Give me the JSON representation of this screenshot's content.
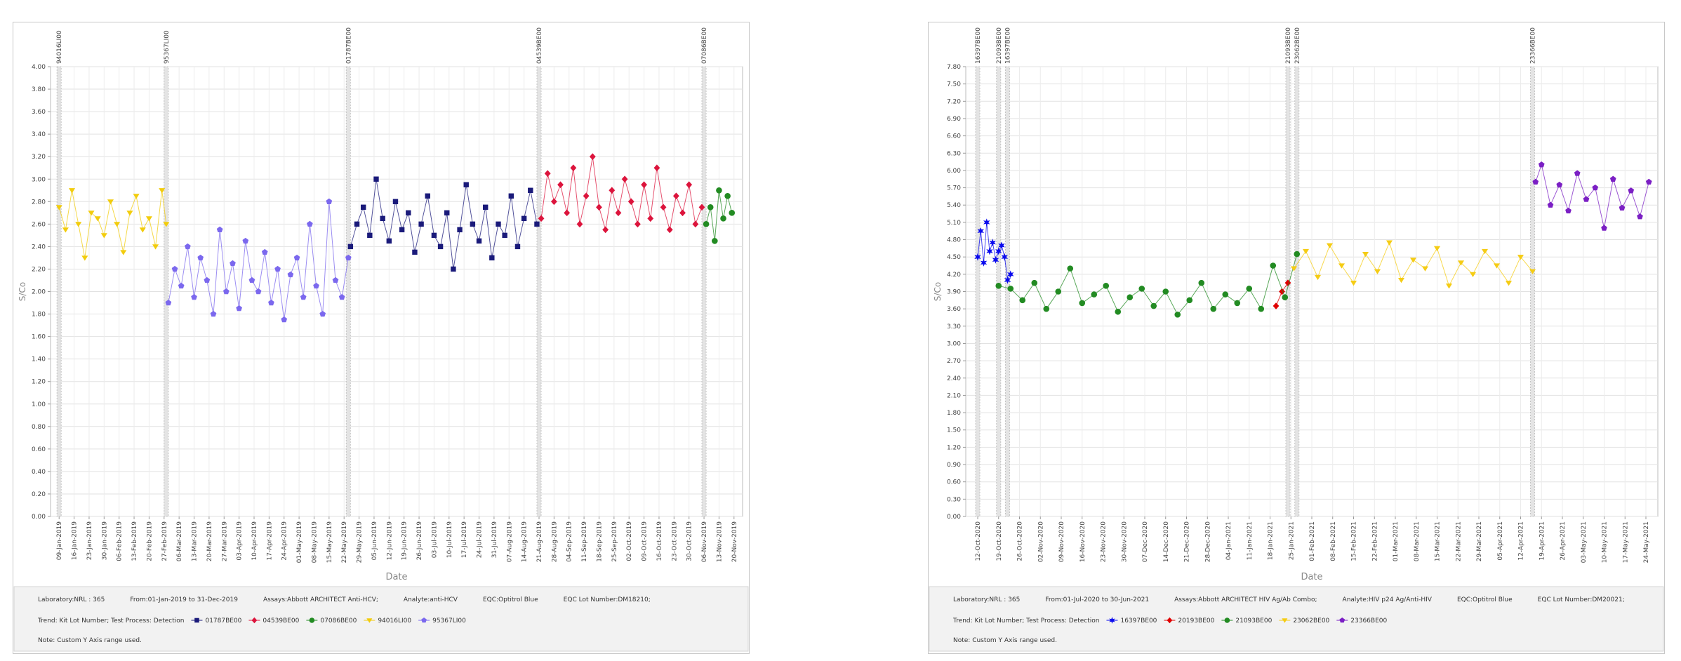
{
  "chart_data": [
    {
      "type": "line",
      "x_label": "Date",
      "y_label": "S/Co",
      "xlim": [
        "05-Jan-2019",
        "24-Nov-2019"
      ],
      "xticks": [
        "09-Jan-2019",
        "16-Jan-2019",
        "23-Jan-2019",
        "30-Jan-2019",
        "06-Feb-2019",
        "13-Feb-2019",
        "20-Feb-2019",
        "27-Feb-2019",
        "06-Mar-2019",
        "13-Mar-2019",
        "20-Mar-2019",
        "27-Mar-2019",
        "03-Apr-2019",
        "10-Apr-2019",
        "17-Apr-2019",
        "24-Apr-2019",
        "01-May-2019",
        "08-May-2019",
        "15-May-2019",
        "22-May-2019",
        "29-May-2019",
        "05-Jun-2019",
        "12-Jun-2019",
        "19-Jun-2019",
        "26-Jun-2019",
        "03-Jul-2019",
        "10-Jul-2019",
        "17-Jul-2019",
        "24-Jul-2019",
        "31-Jul-2019",
        "07-Aug-2019",
        "14-Aug-2019",
        "21-Aug-2019",
        "28-Aug-2019",
        "04-Sep-2019",
        "11-Sep-2019",
        "18-Sep-2019",
        "25-Sep-2019",
        "02-Oct-2019",
        "09-Oct-2019",
        "16-Oct-2019",
        "23-Oct-2019",
        "30-Oct-2019",
        "06-Nov-2019",
        "13-Nov-2019",
        "20-Nov-2019"
      ],
      "ylim": [
        0,
        4
      ],
      "yticks": [
        {
          "value": 0,
          "label": "0.00"
        },
        {
          "value": 0.2,
          "label": "0.20"
        },
        {
          "value": 0.4,
          "label": "0.40"
        },
        {
          "value": 0.6,
          "label": "0.60"
        },
        {
          "value": 0.8,
          "label": "0.80"
        },
        {
          "value": 1,
          "label": "1.00"
        },
        {
          "value": 1.2,
          "label": "1.20"
        },
        {
          "value": 1.4,
          "label": "1.40"
        },
        {
          "value": 1.6,
          "label": "1.60"
        },
        {
          "value": 1.8,
          "label": "1.80"
        },
        {
          "value": 2,
          "label": "2.00"
        },
        {
          "value": 2.2,
          "label": "2.20"
        },
        {
          "value": 2.4,
          "label": "2.40"
        },
        {
          "value": 2.6,
          "label": "2.60"
        },
        {
          "value": 2.8,
          "label": "2.80"
        },
        {
          "value": 3,
          "label": "3.00"
        },
        {
          "value": 3.2,
          "label": "3.20"
        },
        {
          "value": 3.4,
          "label": "3.40"
        },
        {
          "value": 3.6,
          "label": "3.60"
        },
        {
          "value": 3.8,
          "label": "3.80"
        },
        {
          "value": 4,
          "label": "4.00"
        }
      ],
      "grid": true,
      "annotations": [
        {
          "x": "09-Jan-2019",
          "label": "94016LI00"
        },
        {
          "x": "28-Feb-2019",
          "label": "95367LI00"
        },
        {
          "x": "24-May-2019",
          "label": "01787BE00"
        },
        {
          "x": "21-Aug-2019",
          "label": "04539BE00"
        },
        {
          "x": "06-Nov-2019",
          "label": "07086BE00"
        }
      ],
      "info": [
        "Laboratory:NRL : 365",
        "From:01-Jan-2019 to 31-Dec-2019",
        "Assays:Abbott ARCHITECT Anti-HCV;",
        "Analyte:anti-HCV",
        "EQC:Optitrol Blue",
        "EQC Lot Number:DM18210;"
      ],
      "legend_title": "Trend: Kit Lot Number; Test Process: Detection",
      "note": "Note: Custom Y Axis range used.",
      "series": [
        {
          "name": "01787BE00",
          "color": "#1a1a7a",
          "marker": "square",
          "x": [
            "25-May-2019",
            "28-May-2019",
            "31-May-2019",
            "03-Jun-2019",
            "06-Jun-2019",
            "09-Jun-2019",
            "12-Jun-2019",
            "15-Jun-2019",
            "18-Jun-2019",
            "21-Jun-2019",
            "24-Jun-2019",
            "27-Jun-2019",
            "30-Jun-2019",
            "03-Jul-2019",
            "06-Jul-2019",
            "09-Jul-2019",
            "12-Jul-2019",
            "15-Jul-2019",
            "18-Jul-2019",
            "21-Jul-2019",
            "24-Jul-2019",
            "27-Jul-2019",
            "30-Jul-2019",
            "02-Aug-2019",
            "05-Aug-2019",
            "08-Aug-2019",
            "11-Aug-2019",
            "14-Aug-2019",
            "17-Aug-2019",
            "20-Aug-2019"
          ],
          "values": [
            2.4,
            2.6,
            2.75,
            2.5,
            3.0,
            2.65,
            2.45,
            2.8,
            2.55,
            2.7,
            2.35,
            2.6,
            2.85,
            2.5,
            2.4,
            2.7,
            2.2,
            2.55,
            2.95,
            2.6,
            2.45,
            2.75,
            2.3,
            2.6,
            2.5,
            2.85,
            2.4,
            2.65,
            2.9,
            2.6
          ]
        },
        {
          "name": "04539BE00",
          "color": "#dc143c",
          "marker": "diamond",
          "x": [
            "22-Aug-2019",
            "25-Aug-2019",
            "28-Aug-2019",
            "31-Aug-2019",
            "03-Sep-2019",
            "06-Sep-2019",
            "09-Sep-2019",
            "12-Sep-2019",
            "15-Sep-2019",
            "18-Sep-2019",
            "21-Sep-2019",
            "24-Sep-2019",
            "27-Sep-2019",
            "30-Sep-2019",
            "03-Oct-2019",
            "06-Oct-2019",
            "09-Oct-2019",
            "12-Oct-2019",
            "15-Oct-2019",
            "18-Oct-2019",
            "21-Oct-2019",
            "24-Oct-2019",
            "27-Oct-2019",
            "30-Oct-2019",
            "02-Nov-2019",
            "05-Nov-2019"
          ],
          "values": [
            2.65,
            3.05,
            2.8,
            2.95,
            2.7,
            3.1,
            2.6,
            2.85,
            3.2,
            2.75,
            2.55,
            2.9,
            2.7,
            3.0,
            2.8,
            2.6,
            2.95,
            2.65,
            3.1,
            2.75,
            2.55,
            2.85,
            2.7,
            2.95,
            2.6,
            2.75
          ]
        },
        {
          "name": "07086BE00",
          "color": "#228b22",
          "marker": "circle",
          "x": [
            "07-Nov-2019",
            "09-Nov-2019",
            "11-Nov-2019",
            "13-Nov-2019",
            "15-Nov-2019",
            "17-Nov-2019",
            "19-Nov-2019"
          ],
          "values": [
            2.6,
            2.75,
            2.45,
            2.9,
            2.65,
            2.85,
            2.7
          ]
        },
        {
          "name": "94016LI00",
          "color": "#f2cc0c",
          "marker": "triangle-down",
          "x": [
            "09-Jan-2019",
            "12-Jan-2019",
            "15-Jan-2019",
            "18-Jan-2019",
            "21-Jan-2019",
            "24-Jan-2019",
            "27-Jan-2019",
            "30-Jan-2019",
            "02-Feb-2019",
            "05-Feb-2019",
            "08-Feb-2019",
            "11-Feb-2019",
            "14-Feb-2019",
            "17-Feb-2019",
            "20-Feb-2019",
            "23-Feb-2019",
            "26-Feb-2019",
            "28-Feb-2019"
          ],
          "values": [
            2.75,
            2.55,
            2.9,
            2.6,
            2.3,
            2.7,
            2.65,
            2.5,
            2.8,
            2.6,
            2.35,
            2.7,
            2.85,
            2.55,
            2.65,
            2.4,
            2.9,
            2.6
          ]
        },
        {
          "name": "95367LI00",
          "color": "#7b68ee",
          "marker": "pentagon",
          "x": [
            "01-Mar-2019",
            "04-Mar-2019",
            "07-Mar-2019",
            "10-Mar-2019",
            "13-Mar-2019",
            "16-Mar-2019",
            "19-Mar-2019",
            "22-Mar-2019",
            "25-Mar-2019",
            "28-Mar-2019",
            "31-Mar-2019",
            "03-Apr-2019",
            "06-Apr-2019",
            "09-Apr-2019",
            "12-Apr-2019",
            "15-Apr-2019",
            "18-Apr-2019",
            "21-Apr-2019",
            "24-Apr-2019",
            "27-Apr-2019",
            "30-Apr-2019",
            "03-May-2019",
            "06-May-2019",
            "09-May-2019",
            "12-May-2019",
            "15-May-2019",
            "18-May-2019",
            "21-May-2019",
            "24-May-2019"
          ],
          "values": [
            1.9,
            2.2,
            2.05,
            2.4,
            1.95,
            2.3,
            2.1,
            1.8,
            2.55,
            2.0,
            2.25,
            1.85,
            2.45,
            2.1,
            2.0,
            2.35,
            1.9,
            2.2,
            1.75,
            2.15,
            2.3,
            1.95,
            2.6,
            2.05,
            1.8,
            2.8,
            2.1,
            1.95,
            2.3
          ]
        }
      ]
    },
    {
      "type": "line",
      "x_label": "Date",
      "y_label": "S/Co",
      "xlim": [
        "08-Oct-2020",
        "28-May-2021"
      ],
      "xticks": [
        "12-Oct-2020",
        "19-Oct-2020",
        "26-Oct-2020",
        "02-Nov-2020",
        "09-Nov-2020",
        "16-Nov-2020",
        "23-Nov-2020",
        "30-Nov-2020",
        "07-Dec-2020",
        "14-Dec-2020",
        "21-Dec-2020",
        "28-Dec-2020",
        "04-Jan-2021",
        "11-Jan-2021",
        "18-Jan-2021",
        "25-Jan-2021",
        "01-Feb-2021",
        "08-Feb-2021",
        "15-Feb-2021",
        "22-Feb-2021",
        "01-Mar-2021",
        "08-Mar-2021",
        "15-Mar-2021",
        "22-Mar-2021",
        "29-Mar-2021",
        "05-Apr-2021",
        "12-Apr-2021",
        "19-Apr-2021",
        "26-Apr-2021",
        "03-May-2021",
        "10-May-2021",
        "17-May-2021",
        "24-May-2021"
      ],
      "ylim": [
        0,
        7.8
      ],
      "yticks": [
        {
          "value": 0,
          "label": "0.00"
        },
        {
          "value": 0.3,
          "label": "0.30"
        },
        {
          "value": 0.6,
          "label": "0.60"
        },
        {
          "value": 0.9,
          "label": "0.90"
        },
        {
          "value": 1.2,
          "label": "1.20"
        },
        {
          "value": 1.5,
          "label": "1.50"
        },
        {
          "value": 1.8,
          "label": "1.80"
        },
        {
          "value": 2.1,
          "label": "2.10"
        },
        {
          "value": 2.4,
          "label": "2.40"
        },
        {
          "value": 2.7,
          "label": "2.70"
        },
        {
          "value": 3,
          "label": "3.00"
        },
        {
          "value": 3.3,
          "label": "3.30"
        },
        {
          "value": 3.6,
          "label": "3.60"
        },
        {
          "value": 3.9,
          "label": "3.90"
        },
        {
          "value": 4.2,
          "label": "4.20"
        },
        {
          "value": 4.5,
          "label": "4.50"
        },
        {
          "value": 4.8,
          "label": "4.80"
        },
        {
          "value": 5.1,
          "label": "5.10"
        },
        {
          "value": 5.4,
          "label": "5.40"
        },
        {
          "value": 5.7,
          "label": "5.70"
        },
        {
          "value": 6,
          "label": "6.00"
        },
        {
          "value": 6.3,
          "label": "6.30"
        },
        {
          "value": 6.6,
          "label": "6.60"
        },
        {
          "value": 6.9,
          "label": "6.90"
        },
        {
          "value": 7.2,
          "label": "7.20"
        },
        {
          "value": 7.5,
          "label": "7.50"
        },
        {
          "value": 7.8,
          "label": "7.80"
        }
      ],
      "grid": true,
      "annotations": [
        {
          "x": "12-Oct-2020",
          "label": "16397BE00"
        },
        {
          "x": "19-Oct-2020",
          "label": "21093BE00"
        },
        {
          "x": "22-Oct-2020",
          "label": "16397BE00"
        },
        {
          "x": "24-Jan-2021",
          "label": "21093BE00"
        },
        {
          "x": "27-Jan-2021",
          "label": "23062BE00"
        },
        {
          "x": "16-Apr-2021",
          "label": "23366BE00"
        }
      ],
      "info": [
        "Laboratory:NRL : 365",
        "From:01-Jul-2020 to 30-Jun-2021",
        "Assays:Abbott ARCHITECT HIV Ag/Ab Combo;",
        "Analyte:HIV p24 Ag/Anti-HIV",
        "EQC:Optitrol Blue",
        "EQC Lot Number:DM20021;"
      ],
      "legend_title": "Trend: Kit Lot Number; Test Process: Detection",
      "note": "Note: Custom Y Axis range used.",
      "series": [
        {
          "name": "16397BE00",
          "color": "#0a0aee",
          "marker": "star",
          "x": [
            "12-Oct-2020",
            "13-Oct-2020",
            "14-Oct-2020",
            "15-Oct-2020",
            "16-Oct-2020",
            "17-Oct-2020",
            "18-Oct-2020",
            "19-Oct-2020",
            "20-Oct-2020",
            "21-Oct-2020",
            "22-Oct-2020",
            "23-Oct-2020"
          ],
          "values": [
            4.5,
            4.95,
            4.4,
            5.1,
            4.6,
            4.75,
            4.45,
            4.6,
            4.7,
            4.5,
            4.1,
            4.2
          ]
        },
        {
          "name": "20193BE00",
          "color": "#e00000",
          "marker": "diamond",
          "x": [
            "20-Jan-2021",
            "22-Jan-2021",
            "24-Jan-2021"
          ],
          "values": [
            3.65,
            3.9,
            4.05
          ]
        },
        {
          "name": "21093BE00",
          "color": "#228b22",
          "marker": "circle",
          "x": [
            "19-Oct-2020",
            "23-Oct-2020",
            "27-Oct-2020",
            "31-Oct-2020",
            "04-Nov-2020",
            "08-Nov-2020",
            "12-Nov-2020",
            "16-Nov-2020",
            "20-Nov-2020",
            "24-Nov-2020",
            "28-Nov-2020",
            "02-Dec-2020",
            "06-Dec-2020",
            "10-Dec-2020",
            "14-Dec-2020",
            "18-Dec-2020",
            "22-Dec-2020",
            "26-Dec-2020",
            "30-Dec-2020",
            "03-Jan-2021",
            "07-Jan-2021",
            "11-Jan-2021",
            "15-Jan-2021",
            "19-Jan-2021",
            "23-Jan-2021",
            "27-Jan-2021"
          ],
          "values": [
            4.0,
            3.95,
            3.75,
            4.05,
            3.6,
            3.9,
            4.3,
            3.7,
            3.85,
            4.0,
            3.55,
            3.8,
            3.95,
            3.65,
            3.9,
            3.5,
            3.75,
            4.05,
            3.6,
            3.85,
            3.7,
            3.95,
            3.6,
            4.35,
            3.8,
            4.55
          ]
        },
        {
          "name": "23062BE00",
          "color": "#f5cc14",
          "marker": "triangle-down",
          "x": [
            "26-Jan-2021",
            "30-Jan-2021",
            "03-Feb-2021",
            "07-Feb-2021",
            "11-Feb-2021",
            "15-Feb-2021",
            "19-Feb-2021",
            "23-Feb-2021",
            "27-Feb-2021",
            "03-Mar-2021",
            "07-Mar-2021",
            "11-Mar-2021",
            "15-Mar-2021",
            "19-Mar-2021",
            "23-Mar-2021",
            "27-Mar-2021",
            "31-Mar-2021",
            "04-Apr-2021",
            "08-Apr-2021",
            "12-Apr-2021",
            "16-Apr-2021"
          ],
          "values": [
            4.3,
            4.6,
            4.15,
            4.7,
            4.35,
            4.05,
            4.55,
            4.25,
            4.75,
            4.1,
            4.45,
            4.3,
            4.65,
            4.0,
            4.4,
            4.2,
            4.6,
            4.35,
            4.05,
            4.5,
            4.25
          ]
        },
        {
          "name": "23366BE00",
          "color": "#7b1fc4",
          "marker": "pentagon",
          "x": [
            "17-Apr-2021",
            "19-Apr-2021",
            "22-Apr-2021",
            "25-Apr-2021",
            "28-Apr-2021",
            "01-May-2021",
            "04-May-2021",
            "07-May-2021",
            "10-May-2021",
            "13-May-2021",
            "16-May-2021",
            "19-May-2021",
            "22-May-2021",
            "25-May-2021"
          ],
          "values": [
            5.8,
            6.1,
            5.4,
            5.75,
            5.3,
            5.95,
            5.5,
            5.7,
            5.0,
            5.85,
            5.35,
            5.65,
            5.2,
            5.8
          ]
        }
      ]
    }
  ]
}
